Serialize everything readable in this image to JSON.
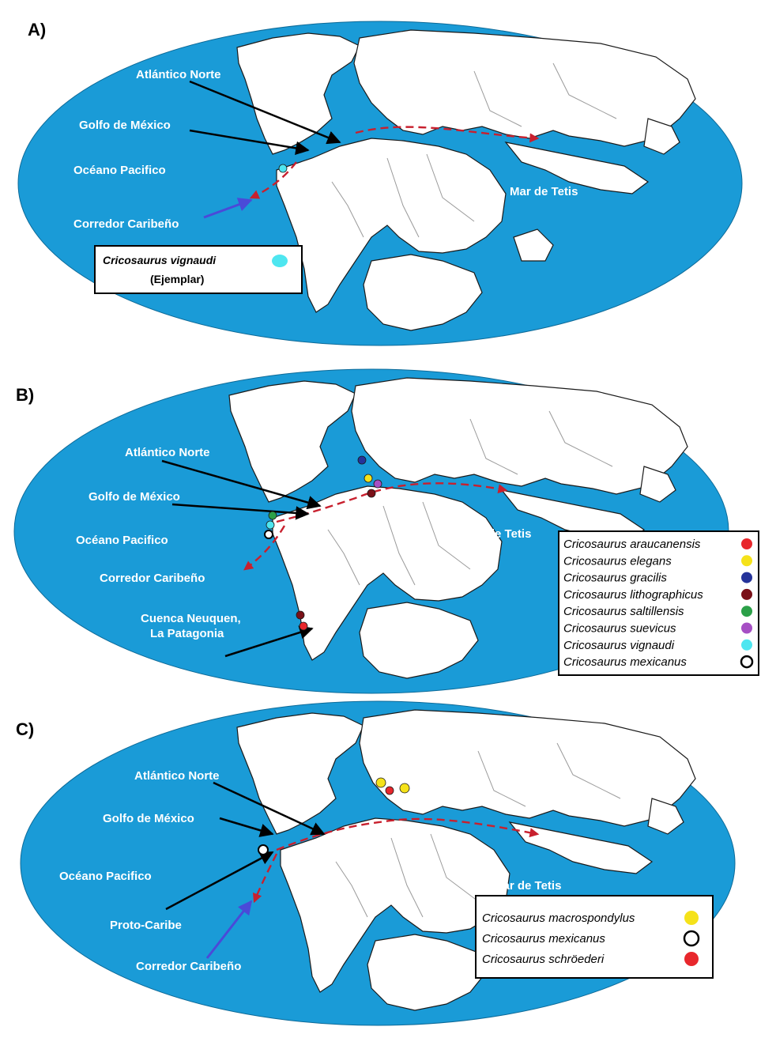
{
  "panels": {
    "a": {
      "letter": "A)",
      "labels": {
        "atlantico_norte": "Atlántico Norte",
        "golfo_mexico": "Golfo de México",
        "oceano_pacifico": "Océano Pacifico",
        "corredor_caribeno": "Corredor Caribeño",
        "mar_tetis": "Mar de Tetis"
      },
      "legend": {
        "title": "Cricosaurus vignaudi",
        "subtitle": "(Ejemplar)",
        "color": "#4ee6f0"
      }
    },
    "b": {
      "letter": "B)",
      "labels": {
        "atlantico_norte": "Atlántico Norte",
        "golfo_mexico": "Golfo de México",
        "oceano_pacifico": "Océano Pacifico",
        "corredor_caribeno": "Corredor Caribeño",
        "mar_tetis": "Mar de Tetis",
        "cuenca_line1": "Cuenca Neuquen,",
        "cuenca_line2": "La Patagonia"
      },
      "legend": [
        {
          "name": "Cricosaurus araucanensis",
          "color": "#e8272c"
        },
        {
          "name": "Cricosaurus elegans",
          "color": "#f5e21a"
        },
        {
          "name": "Cricosaurus gracilis",
          "color": "#25339a"
        },
        {
          "name": "Cricosaurus lithographicus",
          "color": "#7a1018"
        },
        {
          "name": "Cricosaurus saltillensis",
          "color": "#2ba048"
        },
        {
          "name": "Cricosaurus suevicus",
          "color": "#a64fc4"
        },
        {
          "name": "Cricosaurus vignaudi",
          "color": "#4ee6f0"
        },
        {
          "name": "Cricosaurus mexicanus",
          "color": "#ffffff"
        }
      ]
    },
    "c": {
      "letter": "C)",
      "labels": {
        "atlantico_norte": "Atlántico Norte",
        "golfo_mexico": "Golfo de México",
        "oceano_pacifico": "Océano Pacifico",
        "proto_caribe": "Proto-Caribe",
        "corredor_caribeno": "Corredor Caribeño",
        "mar_tetis": "Mar de Tetis"
      },
      "legend": [
        {
          "name": "Cricosaurus macrospondylus",
          "color": "#f5e21a"
        },
        {
          "name": "Cricosaurus mexicanus",
          "color": "#ffffff"
        },
        {
          "name": "Cricosaurus schröederi",
          "color": "#e8272c"
        }
      ]
    }
  },
  "colors": {
    "ocean": "#1a9bd7",
    "land": "#ffffff",
    "route": "#c8202e",
    "corridor_arrow": "#4a4ad8"
  }
}
